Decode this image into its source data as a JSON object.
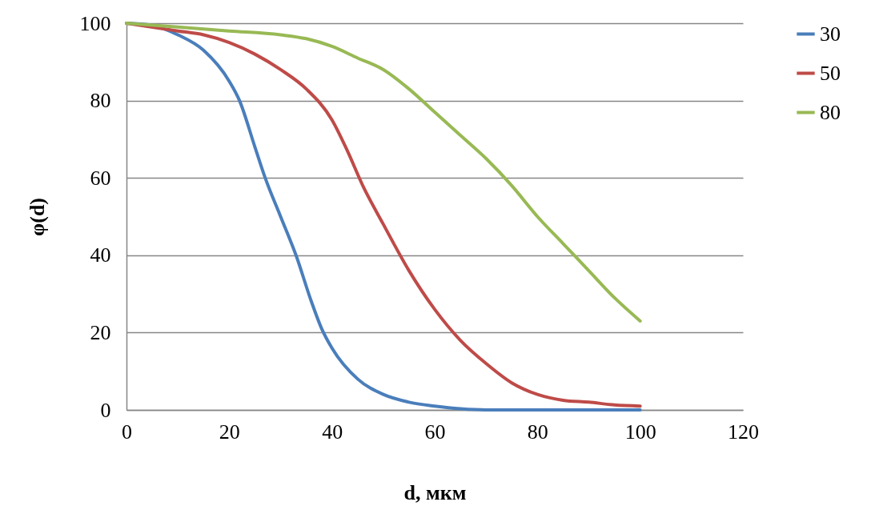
{
  "chart_data": {
    "type": "line",
    "xlabel": "d, мкм",
    "ylabel": "φ(d)",
    "x": [
      0,
      5,
      10,
      15,
      20,
      22,
      25,
      27,
      30,
      33,
      36,
      38,
      40,
      45,
      50,
      55,
      60,
      65,
      70,
      80,
      90,
      100
    ],
    "series": [
      {
        "name": "30",
        "color": "#4a7ebb",
        "values": [
          100,
          99.5,
          97,
          93,
          85,
          80,
          68,
          60,
          50,
          40,
          28,
          21,
          16,
          8,
          4,
          2,
          1,
          0.3,
          0,
          0,
          0,
          0
        ]
      },
      {
        "name": "50",
        "color": "#be4b48",
        "x": [
          0,
          10,
          15,
          20,
          25,
          30,
          35,
          40,
          43,
          46,
          50,
          55,
          60,
          65,
          70,
          75,
          80,
          85,
          90,
          95,
          100
        ],
        "values": [
          100,
          98,
          97,
          95,
          92,
          88,
          83,
          75,
          67,
          58,
          48,
          36,
          26,
          18,
          12,
          7,
          4,
          2.5,
          2,
          1.3,
          1
        ]
      },
      {
        "name": "80",
        "color": "#98b954",
        "x": [
          0,
          10,
          20,
          30,
          35,
          40,
          45,
          50,
          55,
          60,
          65,
          70,
          75,
          80,
          85,
          90,
          95,
          100
        ],
        "values": [
          100,
          99,
          98,
          97,
          96,
          94,
          91,
          88,
          83,
          77,
          71,
          65,
          58,
          50,
          43,
          36,
          29,
          23
        ]
      }
    ],
    "xlim": [
      0,
      120
    ],
    "xticks": [
      0,
      20,
      40,
      60,
      80,
      100,
      120
    ],
    "ylim": [
      0,
      100
    ],
    "yticks": [
      0,
      20,
      40,
      60,
      80,
      100
    ],
    "grid": "y",
    "legend": "right",
    "marker": "none",
    "line_style": "solid"
  }
}
